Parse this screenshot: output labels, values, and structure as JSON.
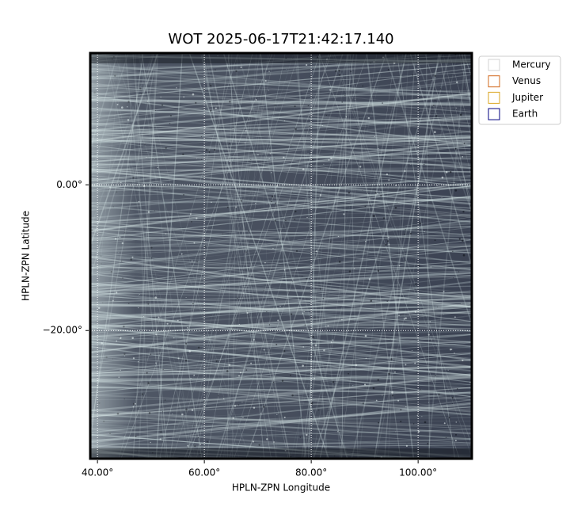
{
  "chart_data": {
    "type": "image",
    "title": "WOT 2025-06-17T21:42:17.140",
    "xlabel": "HPLN-ZPN Longitude",
    "ylabel": "HPLN-ZPN Latitude",
    "xlim": [
      38.5,
      110.2
    ],
    "ylim": [
      -37.7,
      18.2
    ],
    "xticks": [
      {
        "value": 40,
        "label": "40.00°"
      },
      {
        "value": 60,
        "label": "60.00°"
      },
      {
        "value": 80,
        "label": "80.00°"
      },
      {
        "value": 100,
        "label": "100.00°"
      }
    ],
    "yticks": [
      {
        "value": 0,
        "label": "0.00°"
      },
      {
        "value": -20,
        "label": "−20.00°"
      }
    ],
    "grid": true,
    "legend": {
      "loc": "outside upper right",
      "entries": [
        {
          "name": "Mercury",
          "color": "#d3d3d3"
        },
        {
          "name": "Venus",
          "color": "#d2691e"
        },
        {
          "name": "Jupiter",
          "color": "#daa520"
        },
        {
          "name": "Earth",
          "color": "#000080"
        }
      ]
    }
  }
}
